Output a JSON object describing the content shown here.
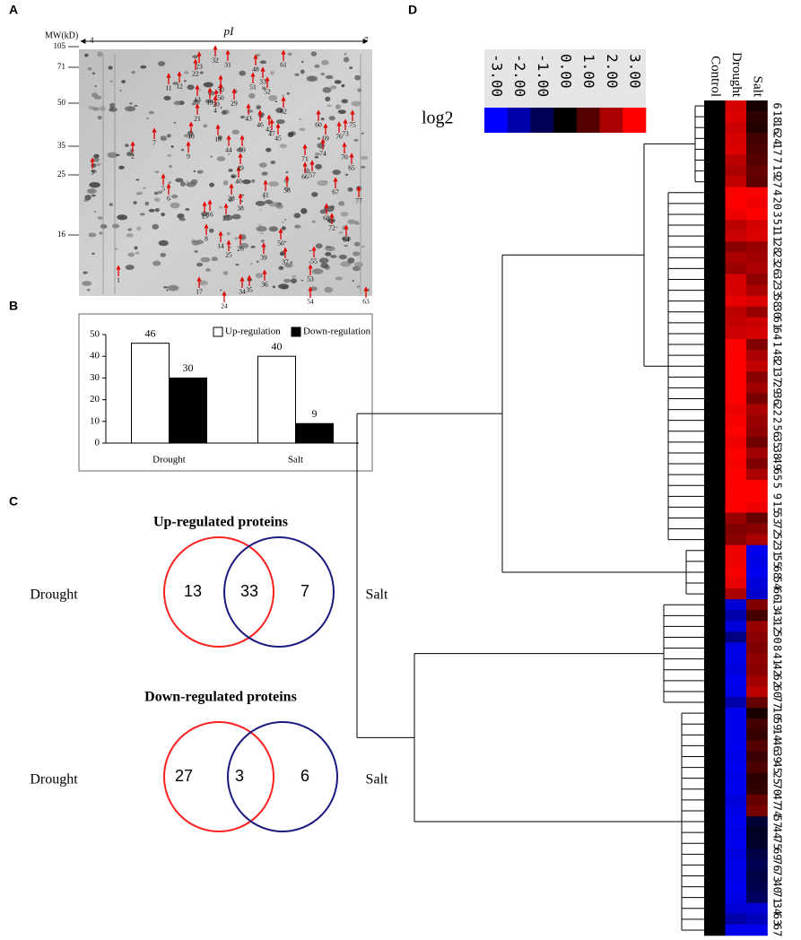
{
  "panel_labels": [
    "A",
    "B",
    "C",
    "D"
  ],
  "gel": {
    "mw_label": "MW(kD)",
    "pi_label": "pI",
    "pi_range": [
      4,
      7
    ],
    "mw_ticks": [
      105,
      71,
      50,
      35,
      25,
      16
    ],
    "spots": [
      1,
      2,
      3,
      4,
      5,
      6,
      7,
      8,
      9,
      10,
      11,
      12,
      13,
      14,
      15,
      16,
      17,
      18,
      19,
      20,
      21,
      22,
      23,
      24,
      25,
      26,
      27,
      28,
      29,
      30,
      31,
      32,
      33,
      34,
      35,
      36,
      37,
      38,
      39,
      40,
      41,
      42,
      43,
      44,
      45,
      46,
      47,
      48,
      49,
      50,
      51,
      52,
      53,
      54,
      55,
      56,
      57,
      58,
      59,
      60,
      61,
      62,
      63,
      64,
      65,
      66,
      67,
      68,
      69,
      70,
      71,
      72,
      73,
      74,
      75,
      76,
      77
    ]
  },
  "chart_data": [
    {
      "type": "bar",
      "categories": [
        "Drought",
        "Salt"
      ],
      "series": [
        {
          "name": "Up-regulation",
          "color": "#ffffff",
          "values": [
            46,
            40
          ]
        },
        {
          "name": "Down-regulation",
          "color": "#000000",
          "values": [
            30,
            9
          ]
        }
      ],
      "ylim": [
        0,
        50
      ],
      "yticks": [
        0,
        10,
        20,
        30,
        40,
        50
      ],
      "legend": "top-right"
    },
    {
      "type": "heatmap",
      "columns": [
        "Control",
        "Drought",
        "Salt"
      ],
      "rows": [
        6,
        18,
        16,
        24,
        17,
        7,
        19,
        27,
        4,
        20,
        3,
        51,
        11,
        28,
        23,
        26,
        32,
        33,
        58,
        30,
        61,
        64,
        1,
        48,
        21,
        37,
        29,
        36,
        22,
        2,
        56,
        35,
        38,
        49,
        65,
        5,
        9,
        15,
        53,
        72,
        52,
        31,
        55,
        68,
        54,
        66,
        13,
        43,
        12,
        50,
        8,
        41,
        42,
        62,
        60,
        77,
        10,
        59,
        14,
        46,
        39,
        45,
        25,
        70,
        47,
        74,
        57,
        44,
        75,
        69,
        76,
        73,
        40,
        71,
        34,
        63,
        67
      ],
      "values": [
        [
          0,
          2.5,
          0.3
        ],
        [
          0,
          2.6,
          0.5
        ],
        [
          0,
          2.4,
          0.4
        ],
        [
          0,
          2.5,
          0.8
        ],
        [
          0,
          2.6,
          0.9
        ],
        [
          0,
          2.2,
          1.0
        ],
        [
          0,
          2.0,
          1.2
        ],
        [
          0,
          2.3,
          1.1
        ],
        [
          0,
          3.0,
          3.0
        ],
        [
          0,
          3.0,
          2.8
        ],
        [
          0,
          2.8,
          3.0
        ],
        [
          0,
          2.2,
          2.5
        ],
        [
          0,
          2.4,
          2.6
        ],
        [
          0,
          1.6,
          1.8
        ],
        [
          0,
          2.0,
          1.9
        ],
        [
          0,
          1.8,
          2.0
        ],
        [
          0,
          2.5,
          1.7
        ],
        [
          0,
          2.5,
          2.0
        ],
        [
          0,
          2.7,
          2.6
        ],
        [
          0,
          2.2,
          1.8
        ],
        [
          0,
          2.3,
          2.4
        ],
        [
          0,
          2.4,
          2.5
        ],
        [
          0,
          3.0,
          1.5
        ],
        [
          0,
          3.0,
          2.0
        ],
        [
          0,
          3.0,
          2.3
        ],
        [
          0,
          3.0,
          1.6
        ],
        [
          0,
          3.0,
          1.9
        ],
        [
          0,
          3.0,
          1.4
        ],
        [
          0,
          2.8,
          2.0
        ],
        [
          0,
          2.9,
          1.8
        ],
        [
          0,
          3.0,
          1.7
        ],
        [
          0,
          2.8,
          1.3
        ],
        [
          0,
          3.0,
          1.9
        ],
        [
          0,
          2.9,
          1.5
        ],
        [
          0,
          3.0,
          2.0
        ],
        [
          0,
          3.0,
          3.0
        ],
        [
          0,
          3.0,
          3.0
        ],
        [
          0,
          3.0,
          2.8
        ],
        [
          0,
          1.8,
          1.2
        ],
        [
          0,
          1.5,
          1.6
        ],
        [
          0,
          1.6,
          2.0
        ],
        [
          0,
          2.8,
          -2.8
        ],
        [
          0,
          2.8,
          -2.7
        ],
        [
          0,
          2.9,
          -2.8
        ],
        [
          0,
          2.7,
          -2.6
        ],
        [
          0,
          2.0,
          -2.4
        ],
        [
          0,
          -2.5,
          1.5
        ],
        [
          0,
          -2.0,
          0.8
        ],
        [
          0,
          -2.6,
          1.8
        ],
        [
          0,
          -1.5,
          1.6
        ],
        [
          0,
          -2.7,
          1.5
        ],
        [
          0,
          -2.7,
          1.7
        ],
        [
          0,
          -2.6,
          1.6
        ],
        [
          0,
          -2.8,
          1.9
        ],
        [
          0,
          -2.7,
          2.2
        ],
        [
          0,
          -2.0,
          1.2
        ],
        [
          0,
          -2.8,
          0.3
        ],
        [
          0,
          -2.8,
          0.8
        ],
        [
          0,
          -2.8,
          0.6
        ],
        [
          0,
          -2.8,
          1.0
        ],
        [
          0,
          -2.7,
          0.7
        ],
        [
          0,
          -2.8,
          0.9
        ],
        [
          0,
          -2.7,
          0.5
        ],
        [
          0,
          -2.8,
          0.6
        ],
        [
          0,
          -2.6,
          1.2
        ],
        [
          0,
          -2.7,
          1.4
        ],
        [
          0,
          -2.8,
          -0.6
        ],
        [
          0,
          -2.7,
          -0.4
        ],
        [
          0,
          -2.8,
          -0.5
        ],
        [
          0,
          -2.6,
          -0.8
        ],
        [
          0,
          -2.7,
          -1.0
        ],
        [
          0,
          -2.7,
          -0.8
        ],
        [
          0,
          -2.8,
          -0.9
        ],
        [
          0,
          -2.7,
          -1.1
        ],
        [
          0,
          -2.5,
          -2.5
        ],
        [
          0,
          -2.0,
          -2.2
        ],
        [
          0,
          -2.8,
          -2.8
        ]
      ],
      "zlim": [
        -3,
        3
      ],
      "colorbar": {
        "label": "log2",
        "ticks": [
          {
            "value": -3,
            "label": "-3.00"
          },
          {
            "value": -2,
            "label": "-2.00"
          },
          {
            "value": -1,
            "label": "-1.00"
          },
          {
            "value": 0,
            "label": "0.00"
          },
          {
            "value": 1,
            "label": "1.00"
          },
          {
            "value": 2,
            "label": "2.00"
          },
          {
            "value": 3,
            "label": "3.00"
          }
        ]
      },
      "colors": {
        "negative": "#0000ff",
        "zero": "#000000",
        "positive": "#ff0000"
      }
    }
  ],
  "venn": [
    {
      "title": "Up-regulated proteins",
      "left": "Drought",
      "right": "Salt",
      "left_only": 13,
      "both": 33,
      "right_only": 7,
      "left_color": "#ff2020",
      "right_color": "#1a1a80"
    },
    {
      "title": "Down-regulated proteins",
      "left": "Drought",
      "right": "Salt",
      "left_only": 27,
      "both": 3,
      "right_only": 6,
      "left_color": "#ff2020",
      "right_color": "#1a1a80"
    }
  ]
}
